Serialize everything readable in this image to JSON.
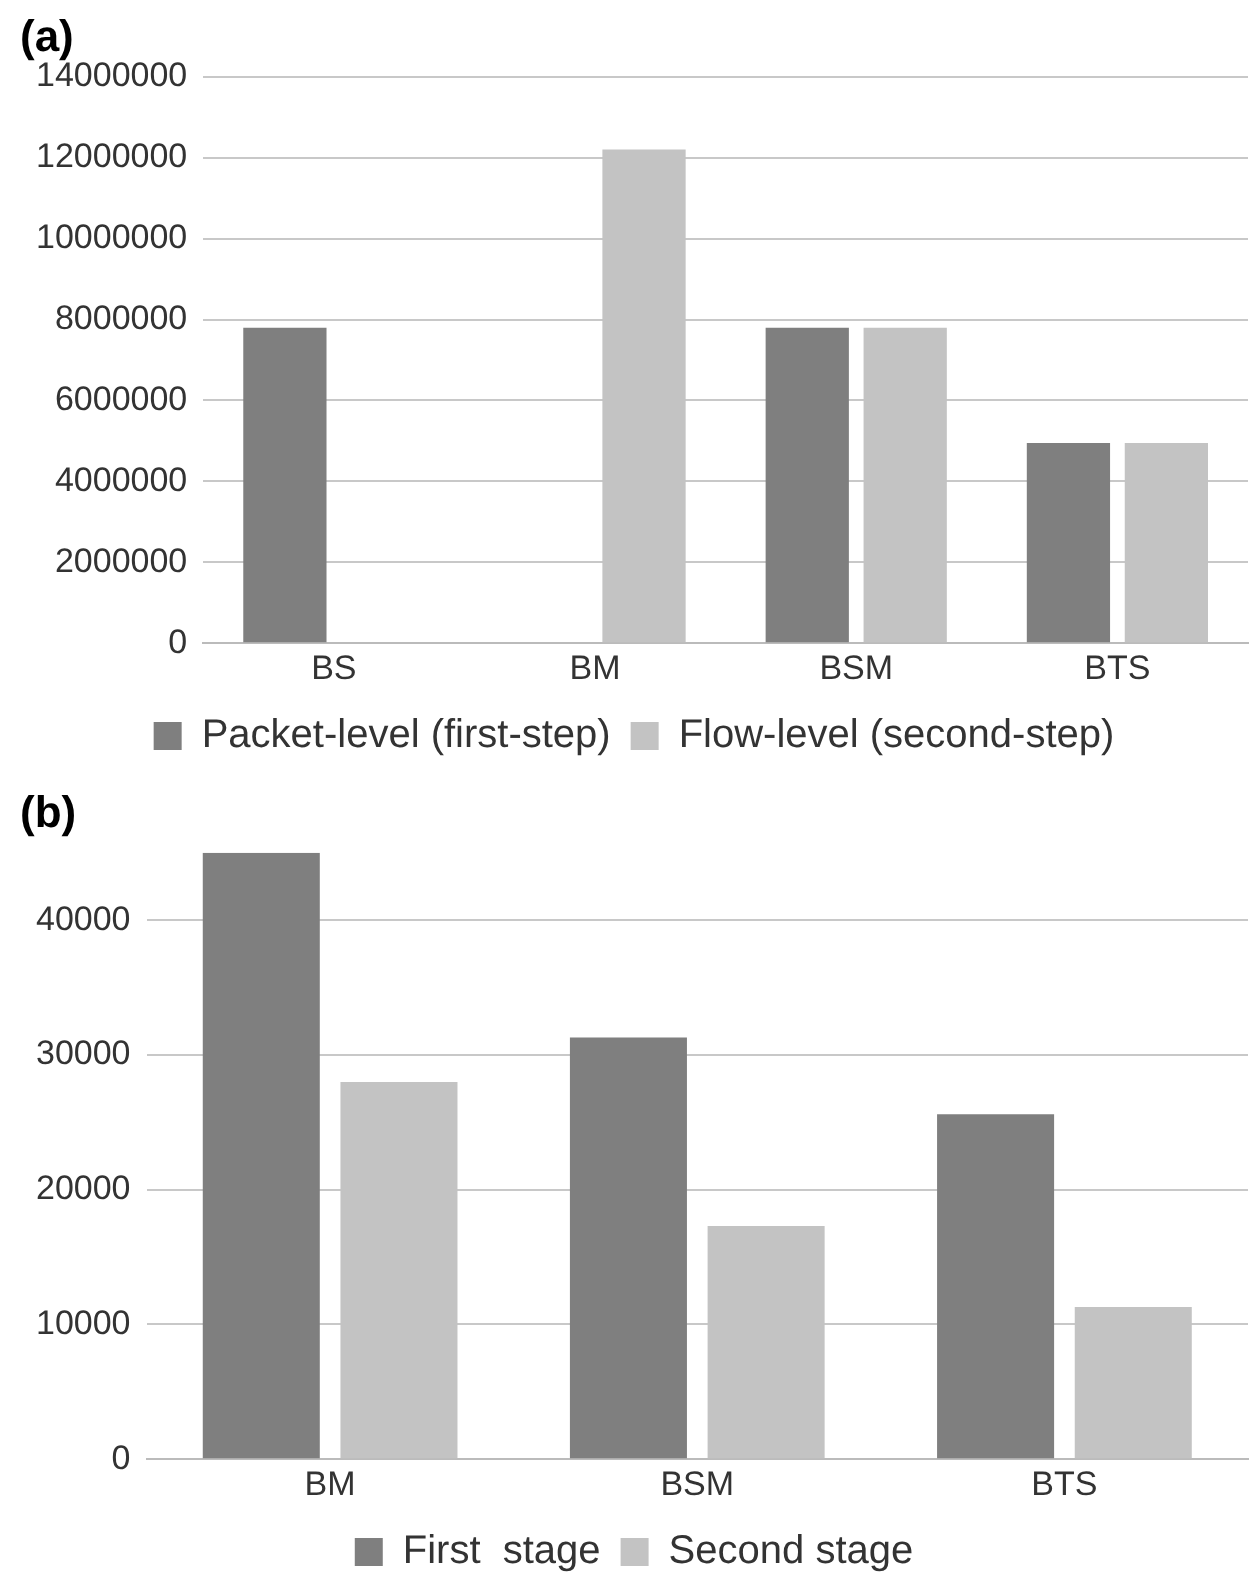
{
  "chart_data": [
    {
      "type": "bar",
      "title": "(a)",
      "categories": [
        "BS",
        "BM",
        "BSM",
        "BTS"
      ],
      "series": [
        {
          "name": "Packet-level (first-step)",
          "color": "#7f7f7f",
          "values": [
            7800000,
            null,
            7800000,
            4950000
          ]
        },
        {
          "name": "Flow-level (second-step)",
          "color": "#c3c3c3",
          "values": [
            null,
            12200000,
            7800000,
            4950000
          ]
        }
      ],
      "ylim": [
        0,
        14000000
      ],
      "yticks": [
        0,
        2000000,
        4000000,
        6000000,
        8000000,
        10000000,
        12000000,
        14000000
      ],
      "grid": "y",
      "legend": "bottom"
    },
    {
      "type": "bar",
      "title": "(b)",
      "categories": [
        "BM",
        "BSM",
        "BTS"
      ],
      "series": [
        {
          "name": "First  stage",
          "color": "#7f7f7f",
          "values": [
            45000,
            31300,
            25600
          ]
        },
        {
          "name": "Second stage",
          "color": "#c3c3c3",
          "values": [
            28000,
            17300,
            11300
          ]
        }
      ],
      "ylim": [
        0,
        45000
      ],
      "yticks": [
        0,
        10000,
        20000,
        30000,
        40000
      ],
      "grid": "y",
      "legend": "bottom"
    }
  ]
}
